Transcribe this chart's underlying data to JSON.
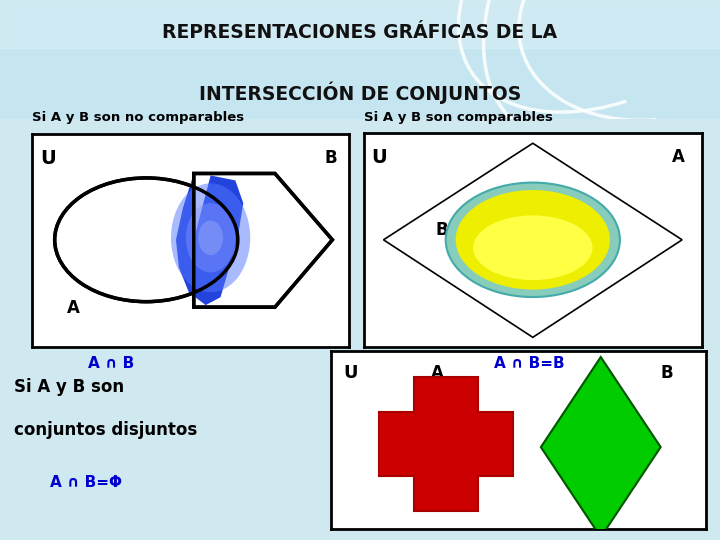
{
  "title_line1": "REPRESENTACIONES GRÁFICAS DE LA",
  "title_line2": "INTERSECCIÓN DE CONJUNTOS",
  "bg_color": "#d0e8f0",
  "title_bg": "#b0d8e8",
  "label_no_comp": "Si A y B son no comparables",
  "label_comp": "Si A y B son comparables",
  "label_disj_1": "Si A y B son",
  "label_disj_2": "conjuntos disjuntos",
  "label_cap_1": "A ∩ B",
  "label_cap_2": "A ∩ B=B",
  "label_cap_3": "A ∩ B=Φ",
  "cap_color": "#0000cc"
}
